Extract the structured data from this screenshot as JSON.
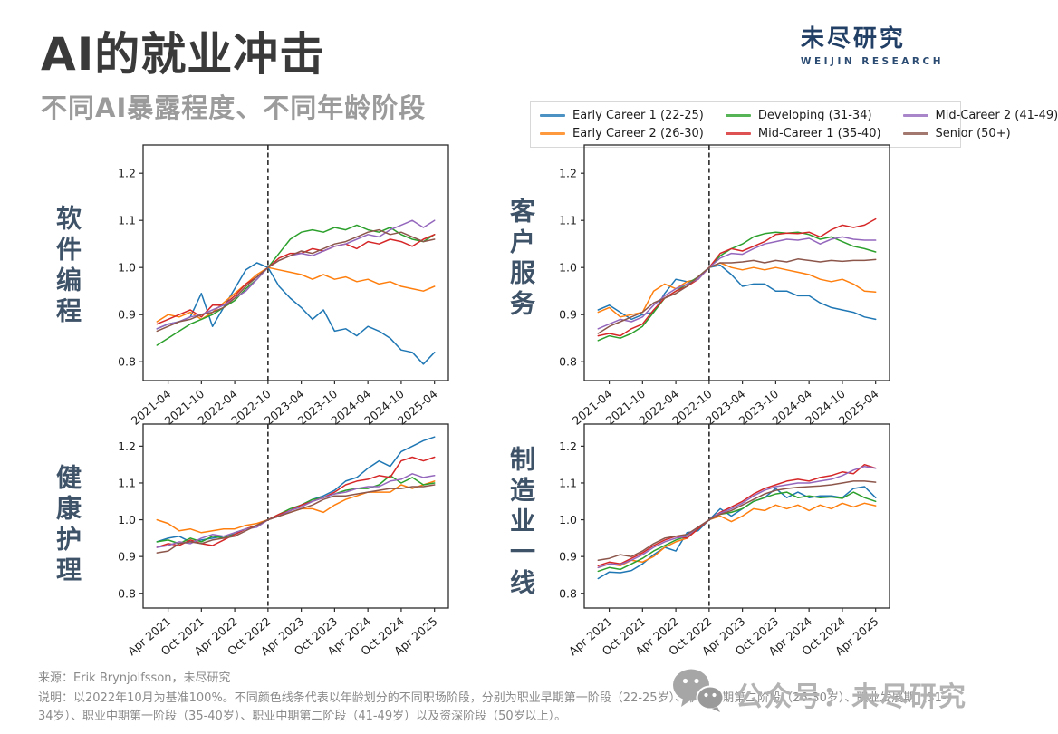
{
  "slide": {
    "title": "AI的就业冲击",
    "subtitle": "不同AI暴露程度、不同年龄阶段",
    "logo": {
      "cn": "未尽研究",
      "en": "WEIJIN RESEARCH"
    },
    "footer": {
      "source": "来源：Erik Brynjolfsson，未尽研究",
      "note": "说明：以2022年10月为基准100%。不同颜色线条代表以年龄划分的不同职场阶段，分别为职业早期第一阶段（22-25岁）、职业早期第二阶段（26-30岁）、职业发展期（31-34岁）、职业中期第一阶段（35-40岁）、职业中期第二阶段（41-49岁）以及资深阶段（50岁以上）。",
      "watermark": "公众号：未尽研究"
    },
    "colors": {
      "title": "#3a3a3a",
      "subtitle": "#9b9b9b",
      "logo_navy": "#223f66",
      "axis": "#2b2b2b",
      "category_label": "#3e5268",
      "watermark_gray": "#b3b3b3"
    }
  },
  "legend": {
    "entries": [
      {
        "label": "Early Career 1 (22-25)",
        "color": "#1f77b4"
      },
      {
        "label": "Early Career 2 (26-30)",
        "color": "#ff7f0e"
      },
      {
        "label": "Developing (31-34)",
        "color": "#2ca02c"
      },
      {
        "label": "Mid-Career 1 (35-40)",
        "color": "#d62728"
      },
      {
        "label": "Mid-Career 2 (41-49)",
        "color": "#9467bd"
      },
      {
        "label": "Senior (50+)",
        "color": "#8c564b"
      }
    ]
  },
  "chart_data": {
    "type": "line",
    "baseline_note": "Index, Oct 2022 = 1.0 (dashed vertical line)",
    "x_months_since_2021_01": [
      1,
      3,
      5,
      7,
      9,
      11,
      13,
      15,
      17,
      19,
      21,
      23,
      25,
      27,
      29,
      31,
      33,
      35,
      37,
      39,
      41,
      43,
      45,
      47,
      49,
      51
    ],
    "baseline_month": 21,
    "xtick_months": [
      3,
      9,
      15,
      21,
      27,
      33,
      39,
      45,
      51
    ],
    "ylim": [
      0.76,
      1.26
    ],
    "yticks": [
      "1.2",
      "1.1",
      "1.0",
      "0.9",
      "0.8"
    ],
    "ytick_values": [
      1.2,
      1.1,
      1.0,
      0.9,
      0.8
    ],
    "charts": [
      {
        "slug": "software-programming",
        "label_cn": "软件编程",
        "xtick_labels": [
          "2021-04",
          "2021-10",
          "2022-04",
          "2022-10",
          "2023-04",
          "2023-10",
          "2024-04",
          "2024-10",
          "2025-04"
        ],
        "series": [
          {
            "name": "Early Career 1 (22-25)",
            "color": "#1f77b4",
            "values": [
              0.87,
              0.88,
              0.885,
              0.895,
              0.945,
              0.875,
              0.915,
              0.955,
              0.995,
              1.01,
              1.0,
              0.96,
              0.935,
              0.915,
              0.89,
              0.91,
              0.865,
              0.87,
              0.855,
              0.875,
              0.865,
              0.85,
              0.825,
              0.82,
              0.795,
              0.82
            ]
          },
          {
            "name": "Early Career 2 (26-30)",
            "color": "#ff7f0e",
            "values": [
              0.885,
              0.9,
              0.895,
              0.905,
              0.89,
              0.905,
              0.925,
              0.945,
              0.965,
              0.985,
              1.0,
              0.995,
              0.99,
              0.985,
              0.975,
              0.985,
              0.975,
              0.98,
              0.97,
              0.975,
              0.965,
              0.97,
              0.96,
              0.955,
              0.95,
              0.96
            ]
          },
          {
            "name": "Developing (31-34)",
            "color": "#2ca02c",
            "values": [
              0.835,
              0.85,
              0.865,
              0.88,
              0.89,
              0.9,
              0.915,
              0.93,
              0.955,
              0.975,
              1.0,
              1.03,
              1.06,
              1.075,
              1.08,
              1.075,
              1.085,
              1.08,
              1.09,
              1.08,
              1.075,
              1.085,
              1.07,
              1.06,
              1.055,
              1.07
            ]
          },
          {
            "name": "Mid-Career 1 (35-40)",
            "color": "#d62728",
            "values": [
              0.88,
              0.89,
              0.9,
              0.91,
              0.895,
              0.92,
              0.92,
              0.94,
              0.965,
              0.98,
              1.0,
              1.02,
              1.03,
              1.03,
              1.04,
              1.035,
              1.045,
              1.05,
              1.04,
              1.055,
              1.05,
              1.06,
              1.055,
              1.045,
              1.06,
              1.07
            ]
          },
          {
            "name": "Mid-Career 2 (41-49)",
            "color": "#9467bd",
            "values": [
              0.87,
              0.88,
              0.885,
              0.895,
              0.9,
              0.91,
              0.92,
              0.935,
              0.95,
              0.975,
              1.0,
              1.015,
              1.025,
              1.03,
              1.025,
              1.035,
              1.045,
              1.05,
              1.06,
              1.07,
              1.065,
              1.08,
              1.09,
              1.1,
              1.085,
              1.1
            ]
          },
          {
            "name": "Senior (50+)",
            "color": "#8c564b",
            "values": [
              0.865,
              0.875,
              0.885,
              0.89,
              0.9,
              0.905,
              0.915,
              0.935,
              0.96,
              0.98,
              1.0,
              1.015,
              1.025,
              1.035,
              1.03,
              1.04,
              1.05,
              1.055,
              1.065,
              1.075,
              1.08,
              1.07,
              1.075,
              1.065,
              1.055,
              1.06
            ]
          }
        ]
      },
      {
        "slug": "customer-service",
        "label_cn": "客户服务",
        "xtick_labels": [
          "2021-04",
          "2021-10",
          "2022-04",
          "2022-10",
          "2023-04",
          "2023-10",
          "2024-04",
          "2024-10",
          "2025-04"
        ],
        "series": [
          {
            "name": "Early Career 1 (22-25)",
            "color": "#1f77b4",
            "values": [
              0.91,
              0.92,
              0.905,
              0.89,
              0.9,
              0.905,
              0.945,
              0.975,
              0.97,
              0.975,
              1.0,
              1.005,
              0.985,
              0.96,
              0.965,
              0.965,
              0.95,
              0.95,
              0.94,
              0.94,
              0.925,
              0.915,
              0.91,
              0.905,
              0.895,
              0.89
            ]
          },
          {
            "name": "Early Career 2 (26-30)",
            "color": "#ff7f0e",
            "values": [
              0.905,
              0.915,
              0.895,
              0.9,
              0.905,
              0.95,
              0.965,
              0.955,
              0.97,
              0.975,
              1.0,
              1.01,
              1.0,
              0.995,
              1.0,
              0.995,
              1.0,
              0.995,
              0.99,
              0.985,
              0.975,
              0.97,
              0.975,
              0.965,
              0.95,
              0.948
            ]
          },
          {
            "name": "Developing (31-34)",
            "color": "#2ca02c",
            "values": [
              0.845,
              0.855,
              0.85,
              0.86,
              0.875,
              0.905,
              0.935,
              0.95,
              0.965,
              0.98,
              1.0,
              1.025,
              1.04,
              1.05,
              1.065,
              1.072,
              1.075,
              1.073,
              1.075,
              1.07,
              1.06,
              1.065,
              1.055,
              1.045,
              1.04,
              1.033
            ]
          },
          {
            "name": "Mid-Career 1 (35-40)",
            "color": "#d62728",
            "values": [
              0.855,
              0.86,
              0.855,
              0.87,
              0.88,
              0.91,
              0.935,
              0.95,
              0.96,
              0.975,
              1.0,
              1.03,
              1.04,
              1.035,
              1.045,
              1.055,
              1.07,
              1.073,
              1.072,
              1.075,
              1.065,
              1.08,
              1.09,
              1.085,
              1.09,
              1.103
            ]
          },
          {
            "name": "Mid-Career 2 (41-49)",
            "color": "#9467bd",
            "values": [
              0.87,
              0.88,
              0.89,
              0.885,
              0.895,
              0.92,
              0.94,
              0.955,
              0.965,
              0.975,
              1.0,
              1.02,
              1.03,
              1.028,
              1.04,
              1.05,
              1.055,
              1.06,
              1.058,
              1.062,
              1.05,
              1.06,
              1.065,
              1.06,
              1.058,
              1.058
            ]
          },
          {
            "name": "Senior (50+)",
            "color": "#8c564b",
            "values": [
              0.86,
              0.875,
              0.885,
              0.895,
              0.905,
              0.925,
              0.935,
              0.945,
              0.96,
              0.98,
              1.0,
              1.01,
              1.01,
              1.012,
              1.015,
              1.01,
              1.015,
              1.012,
              1.018,
              1.015,
              1.012,
              1.015,
              1.013,
              1.015,
              1.015,
              1.017
            ]
          }
        ]
      },
      {
        "slug": "health-care",
        "label_cn": "健康护理",
        "xtick_labels": [
          "Apr 2021",
          "Oct 2021",
          "Apr 2022",
          "Oct 2022",
          "Apr 2023",
          "Oct 2023",
          "Apr 2024",
          "Oct 2024",
          "Apr 2025"
        ],
        "series": [
          {
            "name": "Early Career 1 (22-25)",
            "color": "#1f77b4",
            "values": [
              0.94,
              0.95,
              0.955,
              0.94,
              0.945,
              0.95,
              0.955,
              0.96,
              0.975,
              0.985,
              1.0,
              1.01,
              1.025,
              1.04,
              1.055,
              1.065,
              1.08,
              1.105,
              1.115,
              1.14,
              1.16,
              1.145,
              1.185,
              1.2,
              1.215,
              1.225
            ]
          },
          {
            "name": "Early Career 2 (26-30)",
            "color": "#ff7f0e",
            "values": [
              1.0,
              0.99,
              0.97,
              0.975,
              0.965,
              0.97,
              0.975,
              0.975,
              0.985,
              0.99,
              1.0,
              1.01,
              1.02,
              1.03,
              1.03,
              1.02,
              1.04,
              1.055,
              1.065,
              1.075,
              1.075,
              1.075,
              1.095,
              1.085,
              1.095,
              1.105
            ]
          },
          {
            "name": "Developing (31-34)",
            "color": "#2ca02c",
            "values": [
              0.94,
              0.945,
              0.935,
              0.95,
              0.94,
              0.955,
              0.95,
              0.965,
              0.975,
              0.985,
              1.0,
              1.015,
              1.03,
              1.04,
              1.055,
              1.06,
              1.07,
              1.08,
              1.085,
              1.085,
              1.095,
              1.12,
              1.1,
              1.115,
              1.095,
              1.1
            ]
          },
          {
            "name": "Mid-Career 1 (35-40)",
            "color": "#d62728",
            "values": [
              0.925,
              0.935,
              0.93,
              0.945,
              0.935,
              0.93,
              0.945,
              0.96,
              0.975,
              0.985,
              1.0,
              1.015,
              1.025,
              1.04,
              1.05,
              1.06,
              1.075,
              1.095,
              1.105,
              1.11,
              1.12,
              1.115,
              1.16,
              1.17,
              1.16,
              1.17
            ]
          },
          {
            "name": "Mid-Career 2 (41-49)",
            "color": "#9467bd",
            "values": [
              0.925,
              0.93,
              0.94,
              0.935,
              0.95,
              0.96,
              0.955,
              0.965,
              0.975,
              0.98,
              1.0,
              1.01,
              1.025,
              1.035,
              1.05,
              1.06,
              1.07,
              1.075,
              1.085,
              1.09,
              1.09,
              1.105,
              1.11,
              1.125,
              1.115,
              1.12
            ]
          },
          {
            "name": "Senior (50+)",
            "color": "#8c564b",
            "values": [
              0.91,
              0.915,
              0.935,
              0.94,
              0.935,
              0.945,
              0.95,
              0.955,
              0.97,
              0.985,
              1.0,
              1.01,
              1.02,
              1.03,
              1.04,
              1.055,
              1.065,
              1.065,
              1.07,
              1.075,
              1.08,
              1.085,
              1.085,
              1.09,
              1.09,
              1.095
            ]
          }
        ]
      },
      {
        "slug": "manufacturing-frontline",
        "label_cn": "制造业一线",
        "xtick_labels": [
          "Apr 2021",
          "Oct 2021",
          "Apr 2022",
          "Oct 2022",
          "Apr 2023",
          "Oct 2023",
          "Apr 2024",
          "Oct 2024",
          "Apr 2025"
        ],
        "series": [
          {
            "name": "Early Career 1 (22-25)",
            "color": "#1f77b4",
            "values": [
              0.84,
              0.858,
              0.856,
              0.862,
              0.88,
              0.905,
              0.925,
              0.915,
              0.965,
              0.97,
              1.0,
              1.03,
              1.01,
              1.03,
              1.05,
              1.06,
              1.085,
              1.06,
              1.075,
              1.06,
              1.065,
              1.065,
              1.06,
              1.085,
              1.09,
              1.06
            ]
          },
          {
            "name": "Early Career 2 (26-30)",
            "color": "#ff7f0e",
            "values": [
              0.87,
              0.88,
              0.875,
              0.89,
              0.885,
              0.9,
              0.925,
              0.94,
              0.95,
              0.975,
              1.0,
              1.01,
              0.995,
              1.01,
              1.03,
              1.025,
              1.04,
              1.03,
              1.04,
              1.025,
              1.04,
              1.03,
              1.045,
              1.035,
              1.045,
              1.038
            ]
          },
          {
            "name": "Developing (31-34)",
            "color": "#2ca02c",
            "values": [
              0.86,
              0.87,
              0.865,
              0.88,
              0.895,
              0.915,
              0.93,
              0.945,
              0.955,
              0.975,
              1.0,
              1.015,
              1.02,
              1.03,
              1.05,
              1.06,
              1.07,
              1.075,
              1.06,
              1.065,
              1.06,
              1.062,
              1.058,
              1.075,
              1.06,
              1.05
            ]
          },
          {
            "name": "Mid-Career 1 (35-40)",
            "color": "#d62728",
            "values": [
              0.875,
              0.885,
              0.88,
              0.895,
              0.91,
              0.93,
              0.945,
              0.955,
              0.95,
              0.975,
              1.0,
              1.02,
              1.035,
              1.05,
              1.07,
              1.085,
              1.095,
              1.105,
              1.11,
              1.105,
              1.115,
              1.12,
              1.13,
              1.125,
              1.15,
              1.14
            ]
          },
          {
            "name": "Mid-Career 2 (41-49)",
            "color": "#9467bd",
            "values": [
              0.87,
              0.88,
              0.878,
              0.89,
              0.905,
              0.925,
              0.94,
              0.95,
              0.955,
              0.98,
              1.0,
              1.018,
              1.03,
              1.045,
              1.065,
              1.08,
              1.09,
              1.095,
              1.1,
              1.1,
              1.105,
              1.11,
              1.12,
              1.135,
              1.145,
              1.14
            ]
          },
          {
            "name": "Senior (50+)",
            "color": "#8c564b",
            "values": [
              0.89,
              0.895,
              0.905,
              0.9,
              0.915,
              0.935,
              0.95,
              0.955,
              0.96,
              0.98,
              1.0,
              1.015,
              1.025,
              1.04,
              1.055,
              1.07,
              1.08,
              1.085,
              1.088,
              1.09,
              1.092,
              1.095,
              1.1,
              1.105,
              1.105,
              1.102
            ]
          }
        ]
      }
    ]
  }
}
